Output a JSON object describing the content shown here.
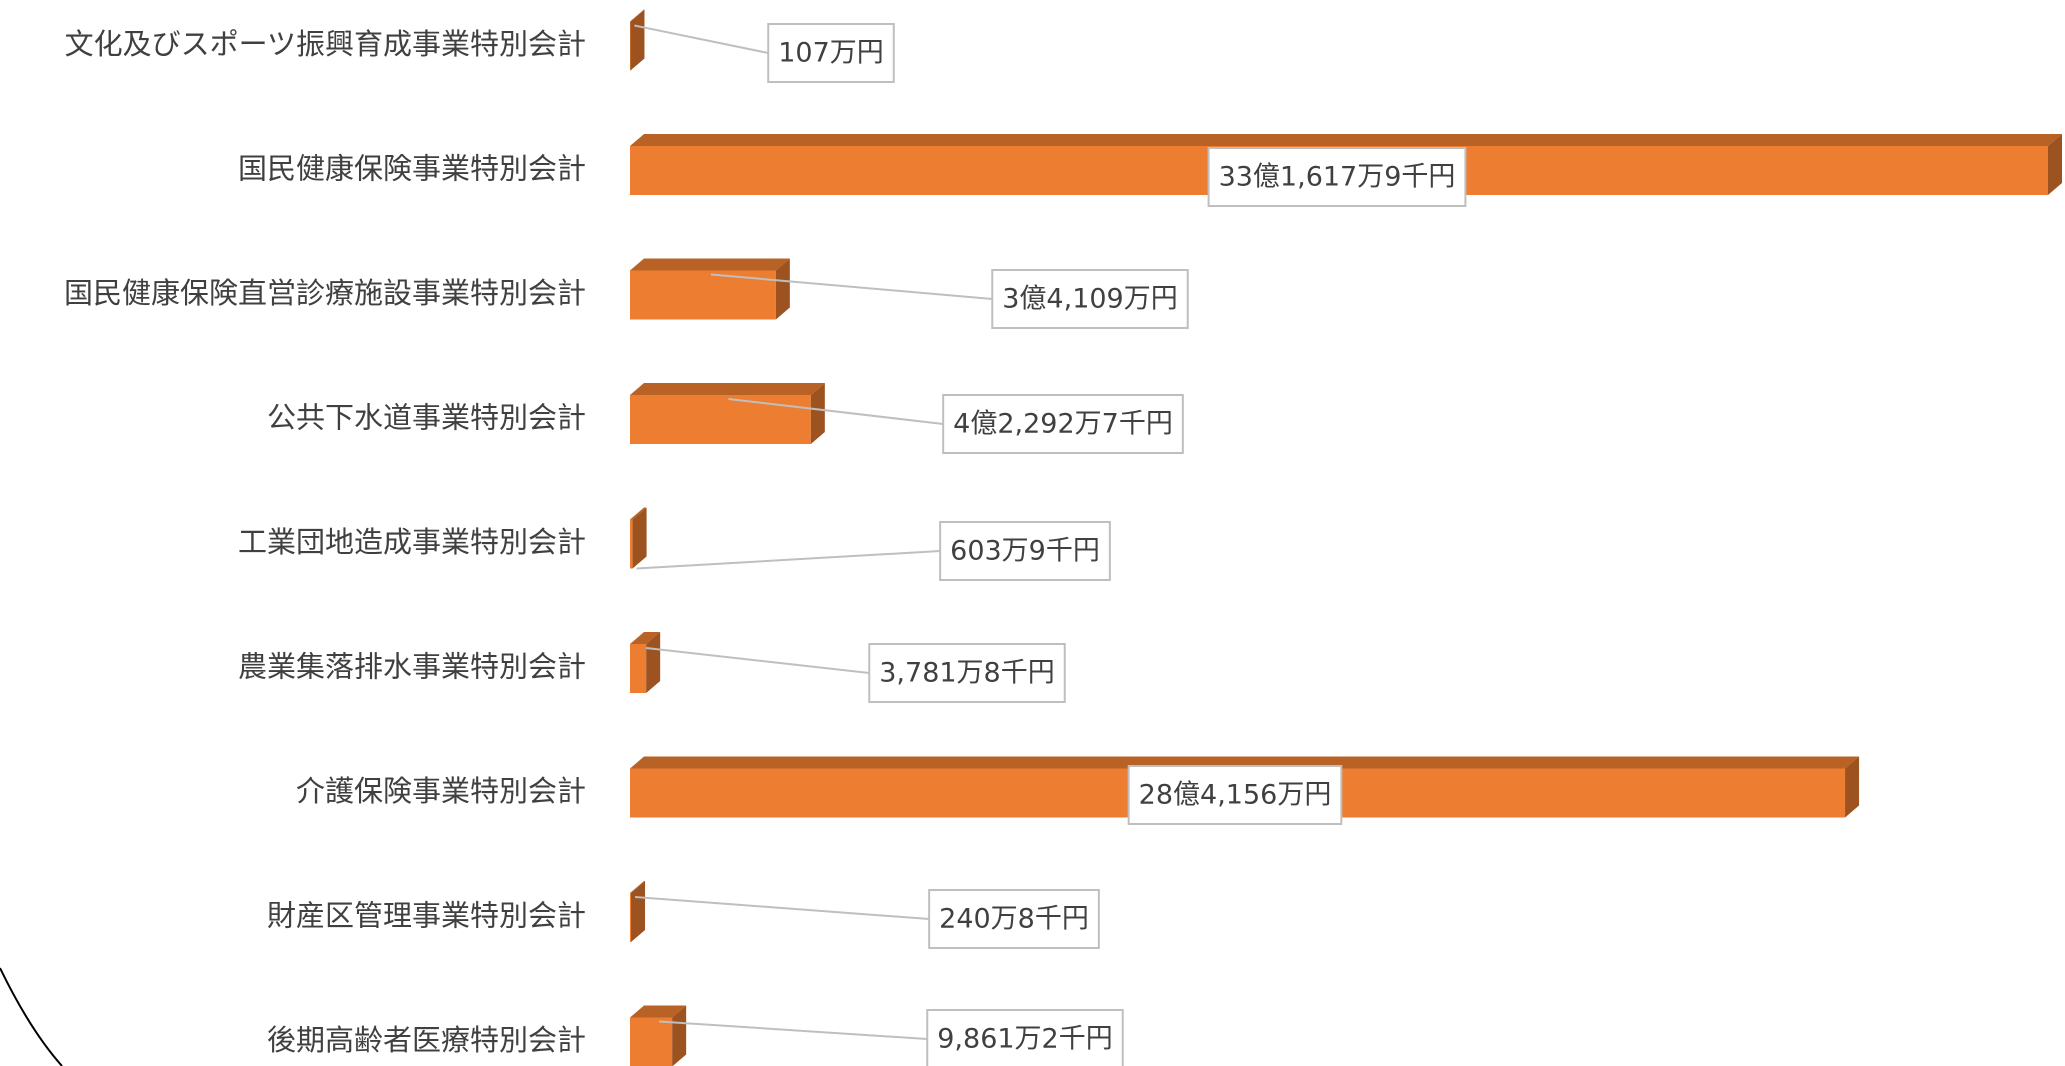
{
  "chart_data": {
    "type": "bar3d-horizontal",
    "categories": [
      "文化及びスポーツ振興育成事業特別会計",
      "国民健康保険事業特別会計",
      "国民健康保険直営診療施設事業特別会計",
      "公共下水道事業特別会計",
      "工業団地造成事業特別会計",
      "農業集落排水事業特別会計",
      "介護保険事業特別会計",
      "財産区管理事業特別会計",
      "後期高齢者医療特別会計"
    ],
    "values": [
      1070000,
      3316179000,
      341090000,
      422927000,
      6039000,
      37818000,
      2841560000,
      2408000,
      98612000
    ],
    "value_labels": [
      "107万円",
      "33億1,617万9千円",
      "3億4,109万円",
      "4億2,292万7千円",
      "603万9千円",
      "3,781万8千円",
      "28億4,156万円",
      "240万8千円",
      "9,861万2千円"
    ],
    "color": "#ed7d31"
  }
}
